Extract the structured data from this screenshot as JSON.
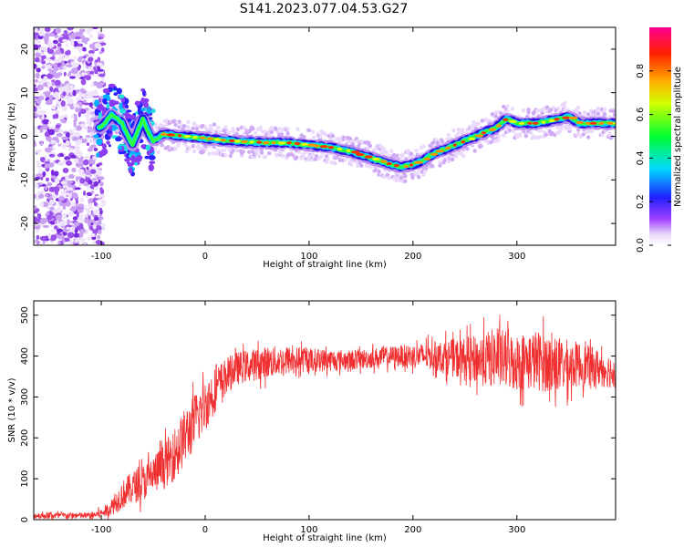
{
  "title": "S141.2023.077.04.53.G27",
  "chart_data": [
    {
      "type": "heatmap",
      "xlabel": "Height of straight line (km)",
      "ylabel": "Frequency (Hz)",
      "xlim": [
        -165,
        395
      ],
      "ylim": [
        -25,
        25
      ],
      "x_ticks": [
        -100,
        0,
        100,
        200,
        300
      ],
      "y_ticks": [
        -20,
        -10,
        0,
        10,
        20
      ],
      "colorbar": {
        "label": "Normalized spectral amplitude",
        "range": [
          0,
          1
        ],
        "ticks": [
          0.0,
          0.2,
          0.4,
          0.6,
          0.8
        ]
      },
      "ridge_frequency_trace": {
        "x": [
          -100,
          -90,
          -80,
          -70,
          -60,
          -55,
          -50,
          -40,
          -20,
          0,
          20,
          60,
          80,
          100,
          120,
          140,
          160,
          180,
          190,
          200,
          210,
          220,
          240,
          260,
          280,
          290,
          300,
          320,
          340,
          350,
          360,
          380,
          395
        ],
        "y": [
          2,
          5,
          3,
          -2,
          4,
          1,
          -1,
          0.5,
          0,
          -0.5,
          -1,
          -1.5,
          -1.5,
          -2,
          -2.5,
          -3.5,
          -5,
          -6.5,
          -7,
          -6.5,
          -5.5,
          -4,
          -2,
          0,
          2,
          4,
          3,
          3,
          4,
          4.5,
          3,
          3,
          3
        ]
      },
      "noise_region_x": [
        -165,
        -110
      ]
    },
    {
      "type": "line",
      "xlabel": "Height of straight line (km)",
      "ylabel": "SNR (10 * v/v)",
      "xlim": [
        -165,
        395
      ],
      "ylim": [
        0,
        535
      ],
      "x_ticks": [
        -100,
        0,
        100,
        200,
        300
      ],
      "y_ticks": [
        0,
        100,
        200,
        300,
        400,
        500
      ],
      "series": [
        {
          "color": "#f03030",
          "envelope_x": [
            -165,
            -130,
            -110,
            -100,
            -90,
            -80,
            -70,
            -60,
            -50,
            -40,
            -30,
            -20,
            -10,
            0,
            10,
            20,
            30,
            40,
            60,
            80,
            100,
            140,
            180,
            220,
            260,
            280,
            300,
            320,
            340,
            360,
            380,
            395
          ],
          "mean_y": [
            10,
            10,
            10,
            15,
            30,
            60,
            80,
            90,
            110,
            130,
            160,
            200,
            240,
            280,
            320,
            350,
            370,
            375,
            385,
            390,
            390,
            390,
            400,
            400,
            390,
            395,
            385,
            390,
            375,
            380,
            370,
            360
          ],
          "spread": [
            8,
            8,
            8,
            12,
            20,
            35,
            40,
            45,
            50,
            55,
            65,
            70,
            70,
            65,
            55,
            45,
            40,
            40,
            40,
            35,
            30,
            25,
            25,
            35,
            60,
            75,
            70,
            75,
            70,
            55,
            45,
            40
          ]
        }
      ]
    }
  ]
}
